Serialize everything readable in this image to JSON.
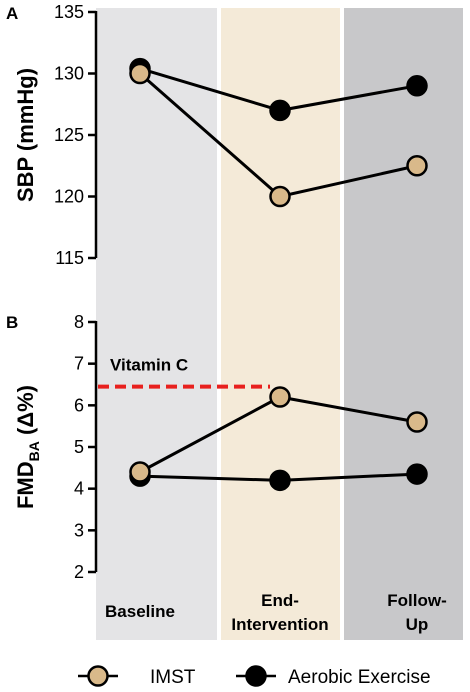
{
  "chart_data": [
    {
      "panel": "A",
      "type": "line",
      "ylabel": "SBP (mmHg)",
      "ylim": [
        115,
        135
      ],
      "yticks": [
        "115",
        "120",
        "125",
        "130",
        "135"
      ],
      "categories": [
        "Baseline",
        "End-Intervention",
        "Follow-Up"
      ],
      "series": [
        {
          "name": "IMST",
          "values": [
            130.0,
            120.0,
            122.5
          ],
          "color": "#d9b98a"
        },
        {
          "name": "Aerobic Exercise",
          "values": [
            130.4,
            127.0,
            129.0
          ],
          "color": "#000000"
        }
      ],
      "grid": false
    },
    {
      "panel": "B",
      "type": "line",
      "ylabel_main": "FMD",
      "ylabel_sub": "BA",
      "ylabel_tail": " (Δ%)",
      "ylim": [
        2,
        8
      ],
      "yticks": [
        "2",
        "3",
        "4",
        "5",
        "6",
        "7",
        "8"
      ],
      "categories": [
        "Baseline",
        "End-Intervention",
        "Follow-Up"
      ],
      "series": [
        {
          "name": "IMST",
          "values": [
            4.4,
            6.2,
            5.6
          ],
          "color": "#d9b98a"
        },
        {
          "name": "Aerobic Exercise",
          "values": [
            4.3,
            4.2,
            4.35
          ],
          "color": "#000000"
        }
      ],
      "reference_line": {
        "label": "Vitamin C",
        "value": 6.45,
        "color": "#e8201e"
      },
      "grid": false
    }
  ],
  "x_labels": [
    {
      "line1": "Baseline",
      "line2": ""
    },
    {
      "line1": "End-",
      "line2": "Intervention"
    },
    {
      "line1": "Follow-",
      "line2": "Up"
    }
  ],
  "band_colors": [
    "#e4e4e6",
    "#f4ead8",
    "#c8c8ca"
  ],
  "legend": [
    {
      "label": "IMST",
      "color": "#d9b98a"
    },
    {
      "label": "Aerobic Exercise",
      "color": "#000000"
    }
  ]
}
